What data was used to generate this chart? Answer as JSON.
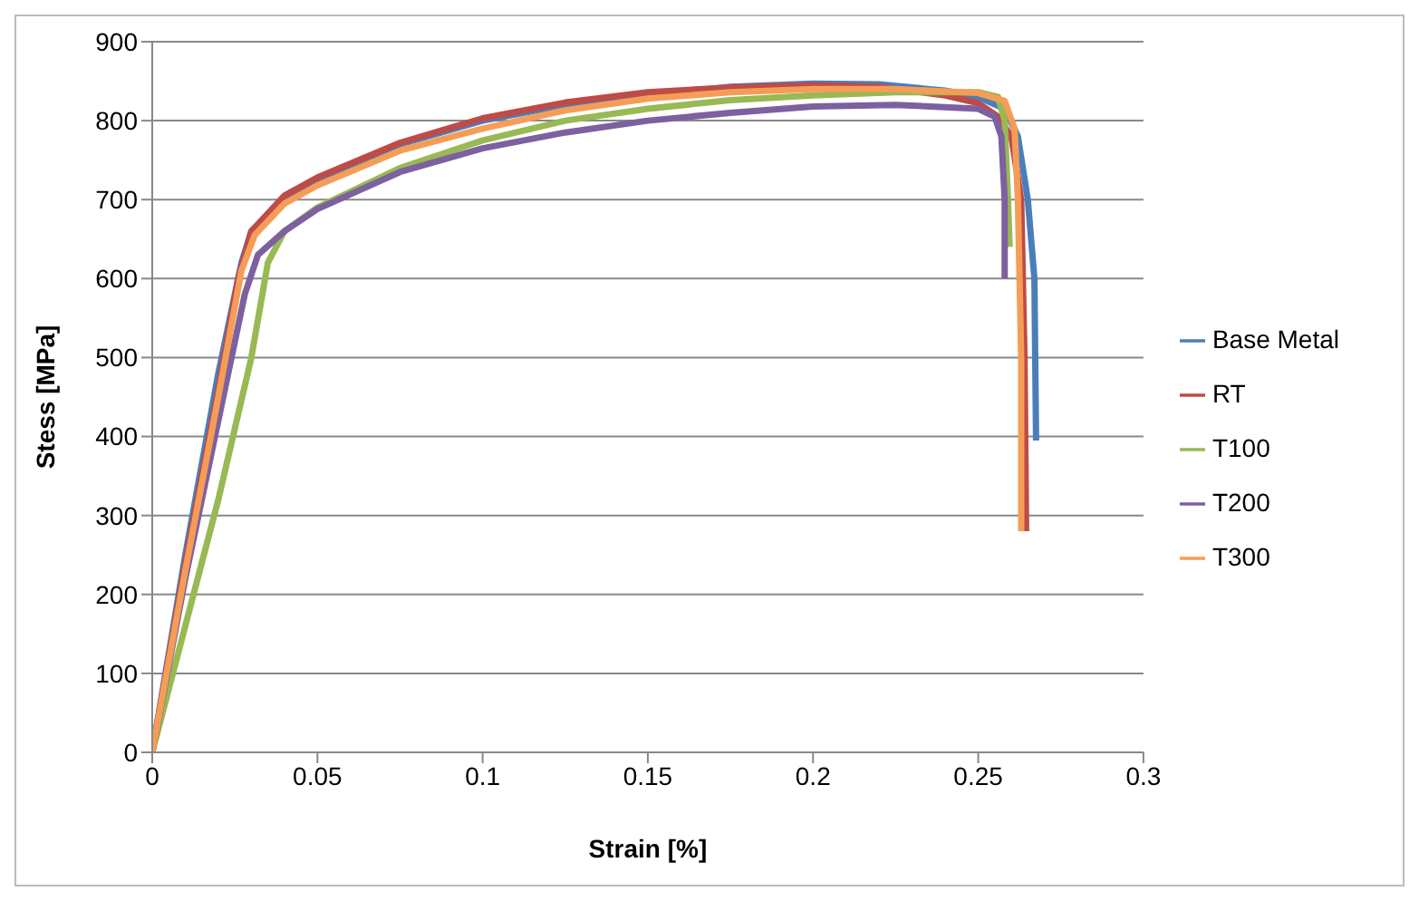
{
  "chart_data": {
    "type": "line",
    "xlabel": "Strain [%]",
    "ylabel": "Stess [MPa]",
    "xlim": [
      0,
      0.3
    ],
    "xticks": [
      0,
      0.05,
      0.1,
      0.15,
      0.2,
      0.25,
      0.3
    ],
    "ylim": [
      0,
      900
    ],
    "yticks": [
      0,
      100,
      200,
      300,
      400,
      500,
      600,
      700,
      800,
      900
    ],
    "grid": "y",
    "legend": "right",
    "marker": "none",
    "line_style": "solid",
    "series": [
      {
        "name": "Base Metal",
        "color": "#4a7ebb",
        "x": [
          0,
          0.01,
          0.02,
          0.027,
          0.03,
          0.04,
          0.05,
          0.075,
          0.1,
          0.125,
          0.175,
          0.2,
          0.22,
          0.24,
          0.25,
          0.258,
          0.262,
          0.265,
          0.267,
          0.2675
        ],
        "values": [
          0,
          250,
          480,
          620,
          660,
          700,
          725,
          770,
          800,
          820,
          843,
          847,
          846,
          838,
          830,
          815,
          780,
          700,
          600,
          395
        ]
      },
      {
        "name": "RT",
        "color": "#be4b48",
        "x": [
          0,
          0.01,
          0.02,
          0.026,
          0.03,
          0.04,
          0.05,
          0.075,
          0.1,
          0.125,
          0.15,
          0.175,
          0.2,
          0.22,
          0.24,
          0.25,
          0.256,
          0.26,
          0.263,
          0.264,
          0.2645
        ],
        "values": [
          0,
          240,
          460,
          600,
          660,
          705,
          728,
          772,
          803,
          823,
          836,
          842,
          845,
          843,
          832,
          822,
          805,
          780,
          700,
          500,
          280
        ]
      },
      {
        "name": "T100",
        "color": "#98b954",
        "x": [
          0,
          0.01,
          0.02,
          0.03,
          0.035,
          0.04,
          0.05,
          0.075,
          0.1,
          0.125,
          0.15,
          0.175,
          0.2,
          0.225,
          0.25,
          0.256,
          0.258,
          0.259,
          0.2595
        ],
        "values": [
          0,
          160,
          320,
          500,
          620,
          660,
          690,
          740,
          775,
          800,
          815,
          826,
          832,
          836,
          836,
          830,
          800,
          700,
          640
        ]
      },
      {
        "name": "T200",
        "color": "#7d60a0",
        "x": [
          0,
          0.01,
          0.02,
          0.028,
          0.032,
          0.04,
          0.05,
          0.075,
          0.1,
          0.125,
          0.15,
          0.175,
          0.2,
          0.225,
          0.25,
          0.255,
          0.257,
          0.258,
          0.258
        ],
        "values": [
          0,
          220,
          420,
          580,
          630,
          660,
          688,
          735,
          765,
          785,
          800,
          810,
          818,
          820,
          815,
          805,
          780,
          700,
          600
        ]
      },
      {
        "name": "T300",
        "color": "#f59d56",
        "x": [
          0,
          0.01,
          0.02,
          0.027,
          0.031,
          0.04,
          0.05,
          0.075,
          0.1,
          0.125,
          0.15,
          0.175,
          0.2,
          0.225,
          0.25,
          0.258,
          0.261,
          0.262,
          0.263,
          0.263
        ],
        "values": [
          0,
          230,
          450,
          610,
          655,
          695,
          718,
          762,
          790,
          813,
          828,
          836,
          840,
          840,
          835,
          825,
          790,
          700,
          500,
          280
        ]
      }
    ]
  }
}
